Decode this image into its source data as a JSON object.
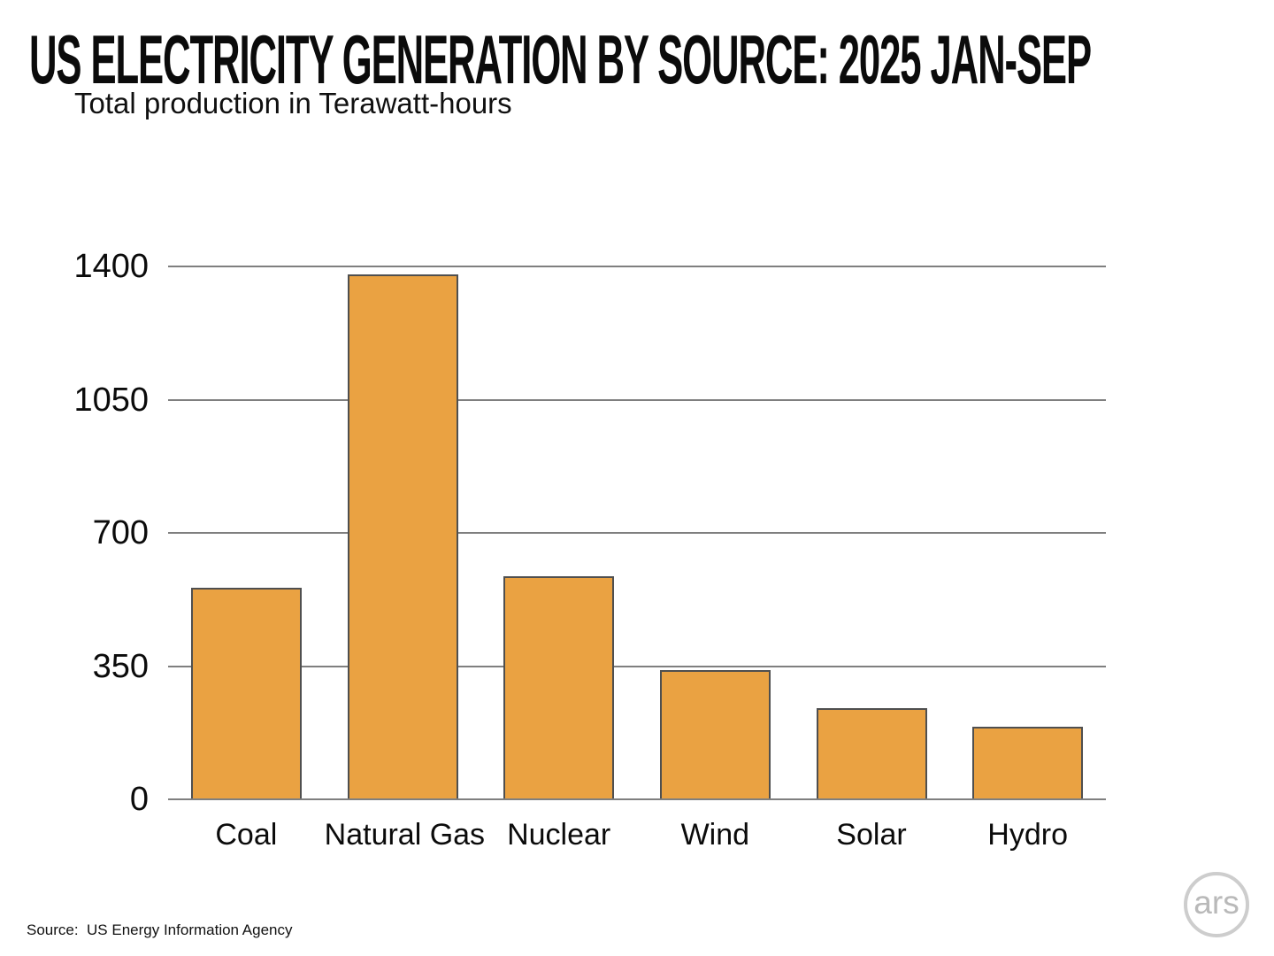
{
  "chart_data": {
    "type": "bar",
    "title": "US ELECTRICITY GENERATION BY SOURCE: 2025 JAN-SEP",
    "subtitle": "Total production in Terawatt-hours",
    "categories": [
      "Coal",
      "Natural Gas",
      "Nuclear",
      "Wind",
      "Solar",
      "Hydro"
    ],
    "values": [
      555,
      1380,
      585,
      340,
      240,
      190
    ],
    "ylabel": "Terawatt-hours",
    "ylim": [
      0,
      1400
    ],
    "yticks": [
      0,
      350,
      700,
      1050,
      1400
    ],
    "grid": true,
    "legend": "none",
    "bar_color": "#EAA242",
    "bar_border_color": "#4f4f4f",
    "grid_color": "#7f7f7f",
    "text_color": "#0b0b0b"
  },
  "footer": {
    "source_label": "Source:  US Energy Information Agency",
    "logo_text": "ars"
  }
}
